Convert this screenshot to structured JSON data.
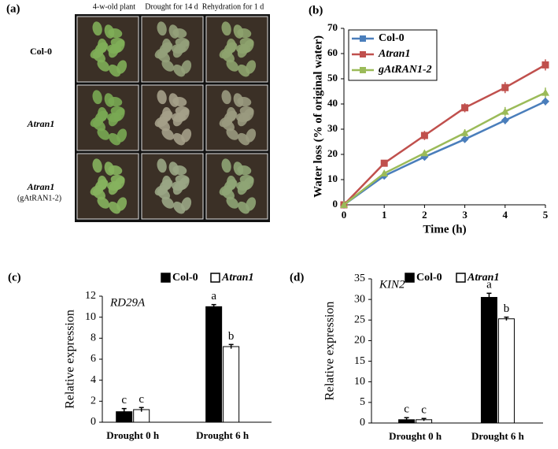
{
  "photo_panel": {
    "label": "(a)",
    "columns": [
      "4-w-old plant",
      "Drought for 14 d",
      "Rehydration for 1 d"
    ],
    "rows": [
      "Col-0",
      "Atran1",
      "Atran1"
    ],
    "row_note": "(gAtRAN1-2)"
  },
  "chart_data": [
    {
      "type": "line",
      "panel": "(b)",
      "x_label": "Time (h)",
      "y_label": "Water loss (% of original water)",
      "x": [
        0,
        1,
        2,
        3,
        4,
        5
      ],
      "xlim": [
        0,
        5
      ],
      "xticks": [
        0,
        1,
        2,
        3,
        4,
        5
      ],
      "ylim": [
        0,
        70
      ],
      "yticks": [
        0,
        10,
        20,
        30,
        40,
        50,
        60,
        70
      ],
      "legend": "upper left",
      "series": [
        {
          "name": "Col-0",
          "color": "#4a7ebb",
          "values": [
            0,
            11.5,
            19,
            26,
            33.5,
            41
          ],
          "errors": [
            0,
            0.8,
            0.8,
            1,
            1.5,
            1.5
          ]
        },
        {
          "name": "Atran1",
          "color": "#c0504d",
          "values": [
            0,
            16.5,
            27.5,
            38.5,
            46.5,
            55.5
          ],
          "errors": [
            0,
            1,
            1.8,
            1.8,
            2.2,
            2.2
          ]
        },
        {
          "name": "gAtRAN1-2",
          "color": "#9bbb59",
          "values": [
            0,
            12.5,
            20.5,
            28.5,
            37,
            44.5
          ],
          "errors": [
            0,
            0.8,
            1,
            1.5,
            1.8,
            2
          ]
        }
      ]
    },
    {
      "type": "bar",
      "panel": "(c)",
      "gene": "RD29A",
      "y_label": "Relative expression",
      "categories": [
        "Drought 0 h",
        "Drought 6 h"
      ],
      "ylim": [
        0,
        12
      ],
      "yticks": [
        0,
        2,
        4,
        6,
        8,
        10,
        12
      ],
      "series": [
        {
          "name": "Col-0",
          "color": "#000000",
          "values": [
            1.0,
            11.0
          ],
          "errors": [
            0.3,
            0.2
          ],
          "letters": [
            "c",
            "a"
          ]
        },
        {
          "name": "Atran1",
          "color": "#ffffff",
          "values": [
            1.2,
            7.2
          ],
          "errors": [
            0.2,
            0.2
          ],
          "letters": [
            "c",
            "b"
          ]
        }
      ]
    },
    {
      "type": "bar",
      "panel": "(d)",
      "gene": "KIN2",
      "y_label": "Relative expression",
      "categories": [
        "Drought 0 h",
        "Drought 6 h"
      ],
      "ylim": [
        0,
        35
      ],
      "yticks": [
        0,
        5,
        10,
        15,
        20,
        25,
        30,
        35
      ],
      "series": [
        {
          "name": "Col-0",
          "color": "#000000",
          "values": [
            0.8,
            30.5
          ],
          "errors": [
            0.5,
            1.0
          ],
          "letters": [
            "c",
            "a"
          ]
        },
        {
          "name": "Atran1",
          "color": "#ffffff",
          "values": [
            0.8,
            25.3
          ],
          "errors": [
            0.3,
            0.4
          ],
          "letters": [
            "c",
            "b"
          ]
        }
      ]
    }
  ]
}
